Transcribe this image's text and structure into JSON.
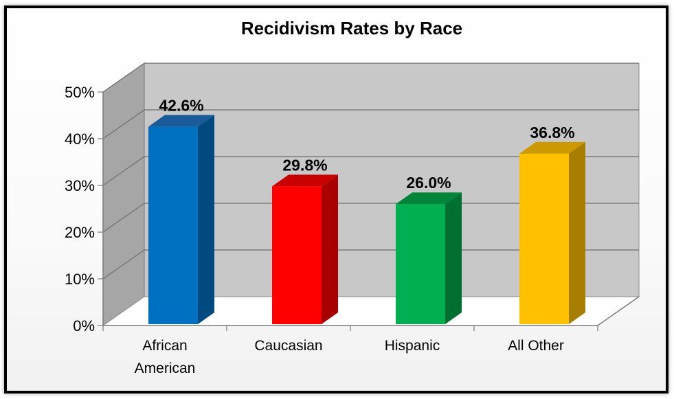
{
  "chart_data": {
    "type": "bar",
    "title": "Recidivism Rates by Race",
    "categories": [
      "African American",
      "Caucasian",
      "Hispanic",
      "All Other"
    ],
    "category_lines": [
      [
        "African",
        "American"
      ],
      [
        "Caucasian"
      ],
      [
        "Hispanic"
      ],
      [
        "All Other"
      ]
    ],
    "values": [
      42.6,
      29.8,
      26.0,
      36.8
    ],
    "data_labels": [
      "42.6%",
      "29.8%",
      "26.0%",
      "36.8%"
    ],
    "ylim": [
      0,
      50
    ],
    "yticks": [
      0,
      10,
      20,
      30,
      40,
      50
    ],
    "ytick_labels": [
      "0%",
      "10%",
      "20%",
      "30%",
      "40%",
      "50%"
    ],
    "grid": true,
    "legend": "none",
    "style": "3d-column",
    "colors": [
      {
        "front": "#0070c0",
        "side": "#004a80",
        "top": "#1a5c99"
      },
      {
        "front": "#ff0000",
        "side": "#a80000",
        "top": "#c80000"
      },
      {
        "front": "#00b050",
        "side": "#007030",
        "top": "#00863a"
      },
      {
        "front": "#ffc000",
        "side": "#a87e00",
        "top": "#cc9a00"
      }
    ],
    "wall_color": "#c8c8c8",
    "side_wall_color": "#a6a6a6",
    "floor_color": "#ffffff"
  }
}
